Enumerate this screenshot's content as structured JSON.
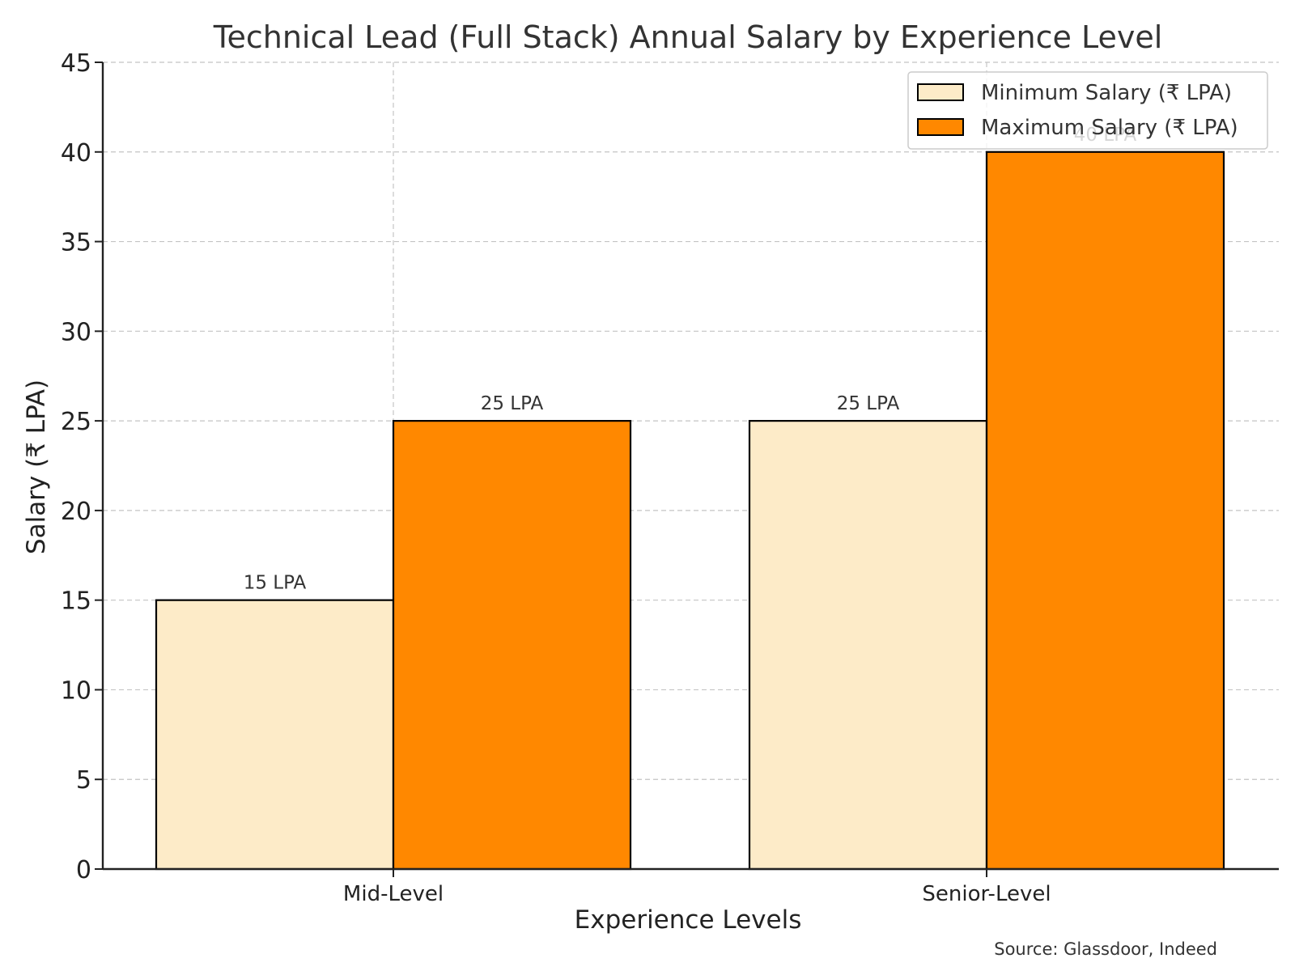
{
  "chart_data": {
    "type": "bar",
    "title": "Technical Lead (Full Stack) Annual Salary by Experience Level",
    "xlabel": "Experience Levels",
    "ylabel": "Salary (₹ LPA)",
    "categories": [
      "Mid-Level",
      "Senior-Level"
    ],
    "series": [
      {
        "name": "Minimum Salary (₹ LPA)",
        "values": [
          15,
          25
        ],
        "labels": [
          "15 LPA",
          "25 LPA"
        ],
        "color": "#FDEBC8"
      },
      {
        "name": "Maximum Salary (₹ LPA)",
        "values": [
          25,
          40
        ],
        "labels": [
          "25 LPA",
          "40 LPA"
        ],
        "color": "#FF8800"
      }
    ],
    "ylim": [
      0,
      45
    ],
    "yticks": [
      "0",
      "5",
      "10",
      "15",
      "20",
      "25",
      "30",
      "35",
      "40",
      "45"
    ],
    "grid": true,
    "legend_position": "top-right",
    "source": "Source: Glassdoor, Indeed"
  }
}
